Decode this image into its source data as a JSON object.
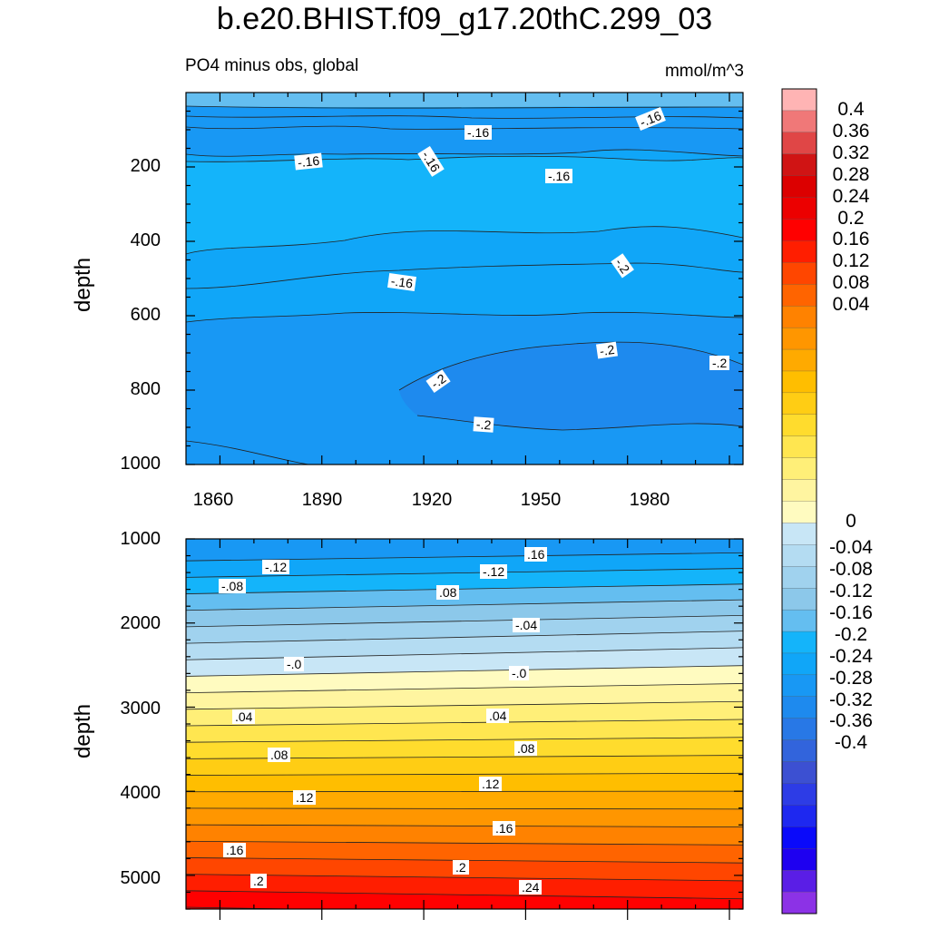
{
  "figure": {
    "title": "b.e20.BHIST.f09_g17.20thC.299_03",
    "subtitle_left": "PO4 minus obs, global",
    "subtitle_right": "mmol/m^3"
  },
  "chart_data": [
    {
      "type": "heatmap",
      "name": "upper ocean panel",
      "title": "PO4 minus obs, global",
      "units": "mmol/m^3",
      "xlabel": "",
      "ylabel": "depth",
      "xlim": [
        1850,
        2014
      ],
      "ylim": [
        1000,
        0
      ],
      "x_ticks": [
        "1860",
        "1890",
        "1920",
        "1950",
        "1980"
      ],
      "y_ticks": [
        "200",
        "400",
        "600",
        "800",
        "1000"
      ],
      "contour_labels": [
        "-.16",
        "-.16",
        "-.16",
        "-.16",
        "-.16",
        "-.16",
        "-.2",
        "-.2",
        "-.2",
        "-.2"
      ],
      "values_summary": "PO4 bias between -0.12 and -0.2 over 0-1000 m; minimum (< -0.2) at 700-900 m after ~1920"
    },
    {
      "type": "heatmap",
      "name": "deep ocean panel",
      "xlabel": "",
      "ylabel": "depth",
      "xlim": [
        1850,
        2014
      ],
      "ylim": [
        5400,
        1000
      ],
      "y_ticks": [
        "1000",
        "2000",
        "3000",
        "4000",
        "5000"
      ],
      "contour_labels": [
        ".16",
        "-.12",
        "-.08",
        "-.12",
        ".08",
        "-.04",
        "-.0",
        "-.0",
        ".04",
        ".04",
        ".08",
        ".08",
        ".12",
        ".12",
        ".16",
        ".16",
        ".2",
        ".2",
        ".24"
      ],
      "values_summary": "PO4 bias increases with depth from about -0.16 at 1000 m to about 0.26 at 5400 m; zero contour near 2450-2700 m"
    },
    {
      "type": "colorbar",
      "levels": [
        -0.4,
        -0.36,
        -0.32,
        -0.28,
        -0.24,
        -0.2,
        -0.16,
        -0.12,
        -0.08,
        -0.04,
        0,
        0.04,
        0.08,
        0.12,
        0.16,
        0.2,
        0.24,
        0.28,
        0.32,
        0.36,
        0.4
      ],
      "labels": [
        "0.4",
        "0.36",
        "0.32",
        "0.28",
        "0.24",
        "0.2",
        "0.16",
        "0.12",
        "0.08",
        "0.04",
        "0",
        "-0.04",
        "-0.08",
        "-0.12",
        "-0.16",
        "-0.2",
        "-0.24",
        "-0.28",
        "-0.32",
        "-0.36",
        "-0.4"
      ],
      "colors_top_to_bottom": [
        "#FFB4B4",
        "#F07878",
        "#E04646",
        "#D01414",
        "#DC0000",
        "#EC0000",
        "#FF0000",
        "#FF1E00",
        "#FF4600",
        "#FF6400",
        "#FF8200",
        "#FF9600",
        "#FFAA00",
        "#FFBE00",
        "#FFCD14",
        "#FFDC2D",
        "#FFE650",
        "#FFEF78",
        "#FFF5A0",
        "#FFFBC0",
        "#C8E6F6",
        "#B4DCF2",
        "#A0D2EE",
        "#8CC8EA",
        "#64BEF0",
        "#14B4FA",
        "#10A6F8",
        "#1898F4",
        "#1E8AEE",
        "#2878E6",
        "#3264DC",
        "#3C50D2",
        "#2D3CE6",
        "#1E28F0",
        "#0A0AFA",
        "#1E00F0",
        "#5A1EE6",
        "#8C32E6"
      ]
    }
  ]
}
